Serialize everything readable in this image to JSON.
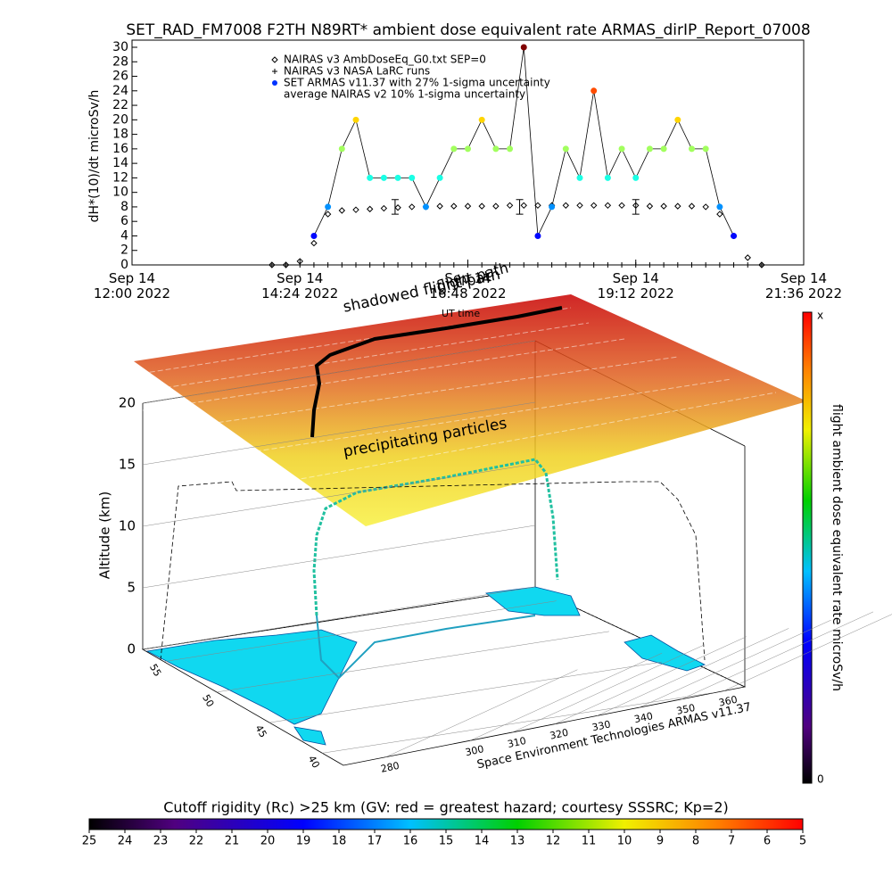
{
  "chart_data": [
    {
      "type": "line",
      "title": "SET_RAD_FM7008  F2TH N89RT* ambient dose equivalent rate ARMAS_dirIP_Report_07008",
      "y_label": "dH*(10)/dt microSv/h",
      "xlim": [
        12,
        21.6
      ],
      "xticks": [
        {
          "value": 12,
          "label": "Sep 14\n12:00 2022"
        },
        {
          "value": 14.4,
          "label": "Sep 14\n14:24 2022"
        },
        {
          "value": 16.8,
          "label": "Sep 14\n16:48 2022"
        },
        {
          "value": 19.2,
          "label": "Sep 14\n19:12 2022"
        },
        {
          "value": 21.6,
          "label": "Sep 14\n21:36 2022"
        }
      ],
      "ylim": [
        0,
        30
      ],
      "yticks": [
        0,
        2,
        4,
        6,
        8,
        10,
        12,
        14,
        16,
        18,
        20,
        22,
        24,
        26,
        28,
        30
      ],
      "x": [
        14.0,
        14.2,
        14.4,
        14.6,
        14.8,
        15.0,
        15.2,
        15.4,
        15.6,
        15.8,
        16.0,
        16.2,
        16.4,
        16.6,
        16.8,
        17.0,
        17.2,
        17.4,
        17.6,
        17.8,
        18.0,
        18.2,
        18.4,
        18.6,
        18.8,
        19.0,
        19.2,
        19.4,
        19.6,
        19.8,
        20.0,
        20.2,
        20.4,
        20.6,
        20.8,
        21.0
      ],
      "series": [
        {
          "name": "NAIRAS v3 AmbDoseEq_G0.txt SEP=0",
          "color": "#000000",
          "marker": "diamond",
          "values": [
            0,
            0,
            0.5,
            3,
            7,
            7.5,
            7.6,
            7.7,
            7.8,
            7.9,
            8.0,
            8.0,
            8.1,
            8.1,
            8.1,
            8.1,
            8.1,
            8.2,
            8.2,
            8.2,
            8.2,
            8.2,
            8.2,
            8.2,
            8.2,
            8.2,
            8.2,
            8.1,
            8.1,
            8.1,
            8.1,
            8.0,
            7,
            4,
            1,
            0
          ]
        },
        {
          "name": "NAIRAS v3 NASA LaRC runs",
          "color": "#000000",
          "marker": "plus",
          "values": [
            0,
            0,
            0,
            0,
            0,
            0,
            0,
            0,
            0,
            0,
            0,
            0,
            0,
            0,
            0,
            0,
            0,
            0,
            0,
            0,
            0,
            0,
            0,
            0,
            0,
            0,
            0,
            0,
            0,
            0,
            0,
            0,
            0,
            0,
            0,
            0
          ]
        },
        {
          "name": "SET ARMAS v11.37 with 27% 1-sigma uncertainty",
          "color": "#0033ff",
          "marker": "circle",
          "values": [
            null,
            null,
            null,
            4,
            8,
            16,
            20,
            12,
            12,
            12,
            12,
            8,
            12,
            16,
            16,
            20,
            16,
            16,
            30,
            4,
            8,
            16,
            12,
            24,
            12,
            16,
            12,
            16,
            16,
            20,
            16,
            16,
            8,
            4,
            null,
            null
          ]
        },
        {
          "name": "average NAIRAS v2 10% 1-sigma uncertainty",
          "color": "#000000",
          "marker": "errorbar",
          "x": [
            15.76,
            17.54,
            19.2
          ],
          "values": [
            8,
            8,
            8
          ],
          "errors": [
            1,
            1,
            1
          ]
        }
      ]
    },
    {
      "type": "scene3d",
      "z_label": "Altitude (km)",
      "zlim": [
        0,
        20
      ],
      "zticks": [
        0,
        5,
        10,
        15,
        20
      ],
      "xlim": [
        270,
        365
      ],
      "xticks": [
        280,
        300,
        310,
        320,
        330,
        340,
        350,
        360
      ],
      "ylim": [
        57,
        38
      ],
      "yticks": [
        55,
        50,
        45,
        40
      ],
      "annotations": [
        "shadowed flight path",
        "flight path",
        "UT time",
        "precipitating particles"
      ],
      "credit": "Space Environment Technologies ARMAS v11.37"
    },
    {
      "type": "colorbar",
      "orientation": "vertical",
      "label": "flight ambient dose equivalent rate microSv/h",
      "lim": [
        0,
        1
      ],
      "ticks": [
        0,
        {
          "value": 1,
          "label": "x"
        }
      ]
    },
    {
      "type": "colorbar",
      "orientation": "horizontal",
      "title": "Cutoff rigidity (Rc) >25 km (GV: red = greatest hazard; courtesy SSSRC; Kp=2)",
      "lim": [
        25,
        5
      ],
      "ticks": [
        25,
        24,
        23,
        22,
        21,
        20,
        19,
        18,
        17,
        16,
        15,
        14,
        13,
        12,
        11,
        10,
        9,
        8,
        7,
        6,
        5
      ]
    }
  ]
}
